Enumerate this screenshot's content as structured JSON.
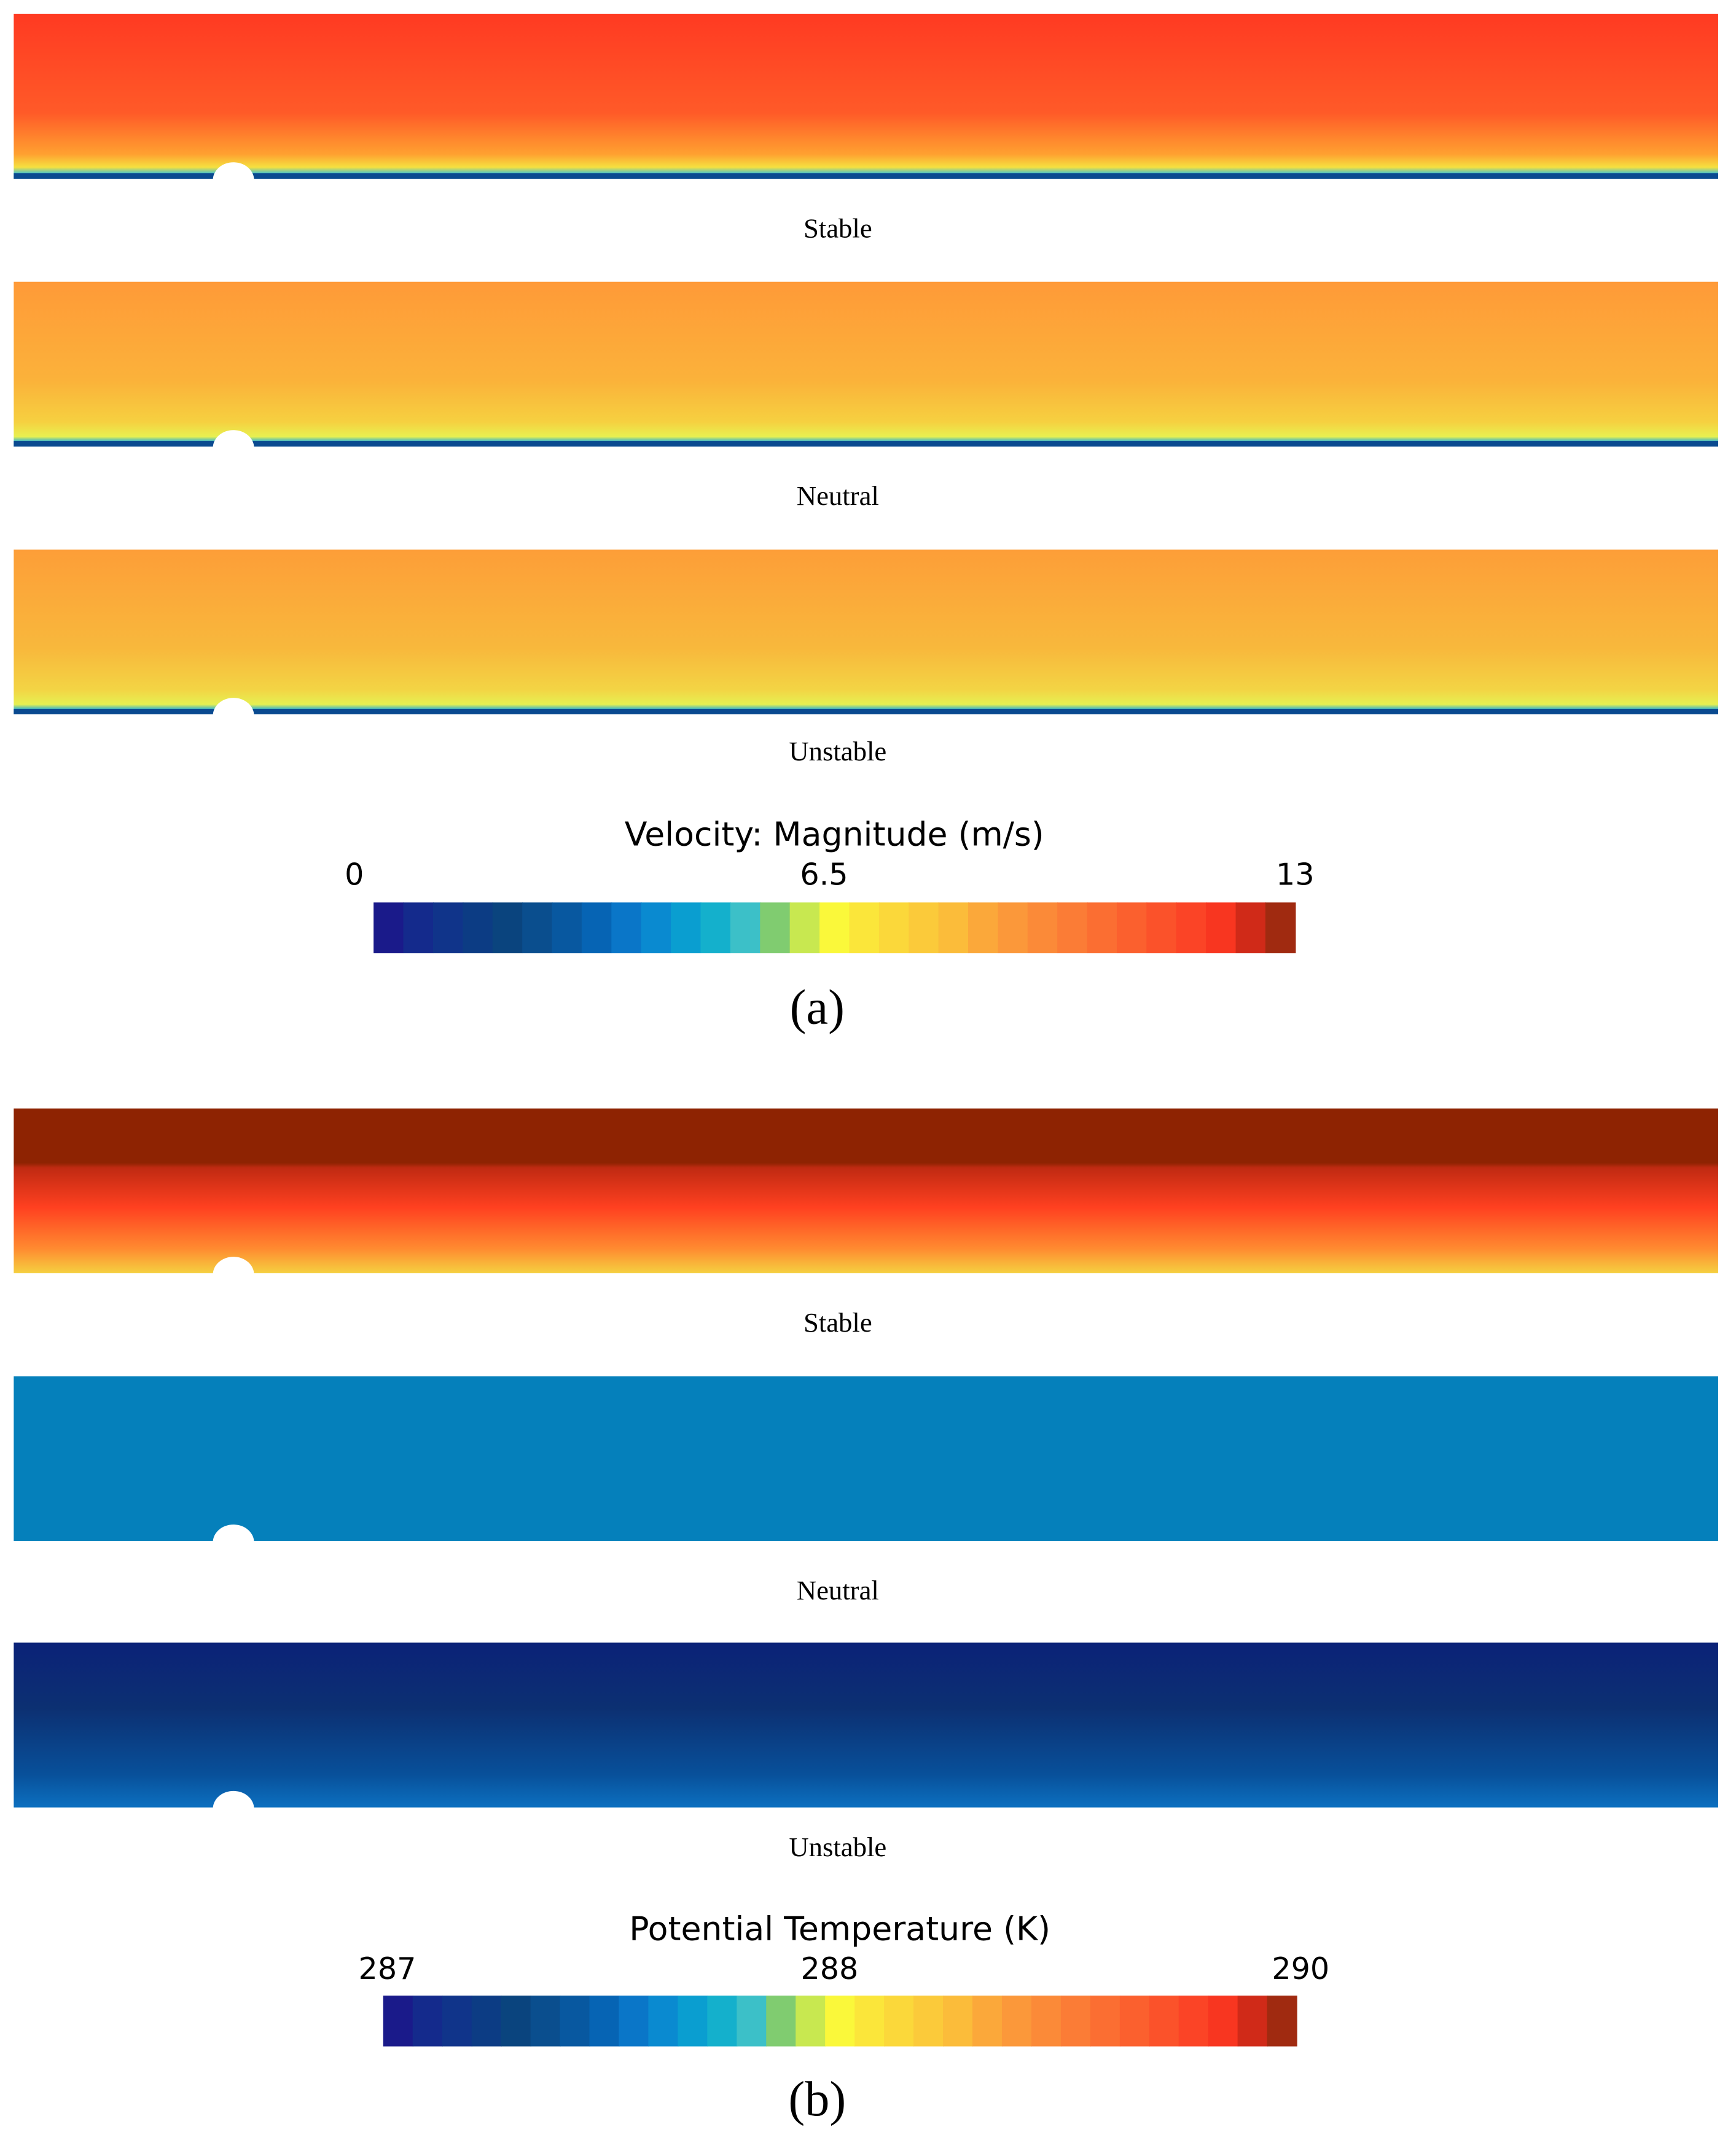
{
  "panel_a": {
    "plots": [
      {
        "label": "Stable"
      },
      {
        "label": "Neutral"
      },
      {
        "label": "Unstable"
      }
    ],
    "colorbar": {
      "title": "Velocity: Magnitude (m/s)",
      "ticks": [
        "0",
        "6.5",
        "13"
      ]
    },
    "caption": "(a)"
  },
  "panel_b": {
    "plots": [
      {
        "label": "Stable"
      },
      {
        "label": "Neutral"
      },
      {
        "label": "Unstable"
      }
    ],
    "colorbar": {
      "title": "Potential Temperature (K)",
      "ticks": [
        "287",
        "288",
        "290"
      ]
    },
    "caption": "(b)"
  }
}
